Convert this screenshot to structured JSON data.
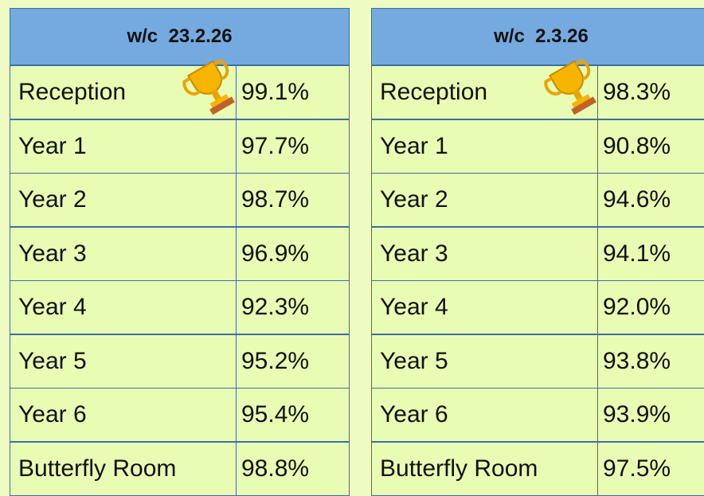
{
  "tables": [
    {
      "header": "w/c  23.2.26",
      "rows": [
        [
          "Reception",
          "99.1%"
        ],
        [
          "Year 1",
          "97.7%"
        ],
        [
          "Year 2",
          "98.7%"
        ],
        [
          "Year 3",
          "96.9%"
        ],
        [
          "Year 4",
          "92.3%"
        ],
        [
          "Year 5",
          "95.2%"
        ],
        [
          "Year 6",
          "95.4%"
        ],
        [
          "Butterfly Room",
          "98.8%"
        ]
      ]
    },
    {
      "header": "w/c  2.3.26",
      "rows": [
        [
          "Reception",
          "98.3%"
        ],
        [
          "Year 1",
          "90.8%"
        ],
        [
          "Year 2",
          "94.6%"
        ],
        [
          "Year 3",
          "94.1%"
        ],
        [
          "Year 4",
          "92.0%"
        ],
        [
          "Year 5",
          "93.8%"
        ],
        [
          "Year 6",
          "93.9%"
        ],
        [
          "Butterfly Room",
          "97.5%"
        ]
      ]
    }
  ]
}
